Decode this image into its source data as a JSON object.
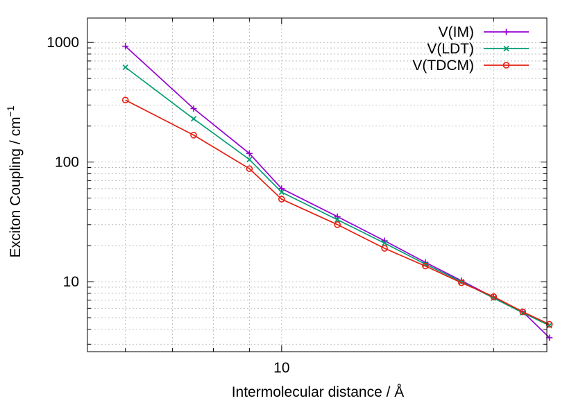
{
  "chart_data": {
    "type": "line",
    "xlabel": "Intermolecular distance / Å",
    "ylabel_main": "Exciton Coupling / cm",
    "ylabel_sup": "−1",
    "x_scale": "log",
    "y_scale": "log",
    "xlim": [
      5.3,
      23.8
    ],
    "ylim": [
      2.6,
      1600
    ],
    "x_major_ticks": [
      {
        "value": 10,
        "label": "10"
      }
    ],
    "x_minor_ticks": [
      6,
      7,
      8,
      9,
      20
    ],
    "y_major_ticks": [
      {
        "value": 10,
        "label": "10"
      },
      {
        "value": 100,
        "label": "100"
      },
      {
        "value": 1000,
        "label": "1000"
      }
    ],
    "grid": true,
    "legend_position": "top-right",
    "series": [
      {
        "name": "V(IM)",
        "color": "#9400d3",
        "marker": "plus",
        "x": [
          6,
          7.5,
          9,
          10,
          12,
          14,
          16,
          18,
          20,
          22,
          24
        ],
        "y": [
          930,
          280,
          118,
          60,
          35,
          22,
          14.5,
          10.2,
          7.4,
          5.6,
          3.4
        ]
      },
      {
        "name": "V(LDT)",
        "color": "#009e73",
        "marker": "cross",
        "x": [
          6,
          7.5,
          9,
          10,
          12,
          14,
          16,
          18,
          20,
          22,
          24
        ],
        "y": [
          620,
          230,
          105,
          56,
          33,
          21,
          14,
          10,
          7.3,
          5.5,
          4.3
        ]
      },
      {
        "name": "V(TDCM)",
        "color": "#e51e10",
        "marker": "circle",
        "x": [
          6,
          7.5,
          9,
          10,
          12,
          14,
          16,
          18,
          20,
          22,
          24
        ],
        "y": [
          330,
          168,
          88,
          49,
          30,
          19,
          13.5,
          9.8,
          7.5,
          5.6,
          4.4
        ]
      }
    ]
  }
}
